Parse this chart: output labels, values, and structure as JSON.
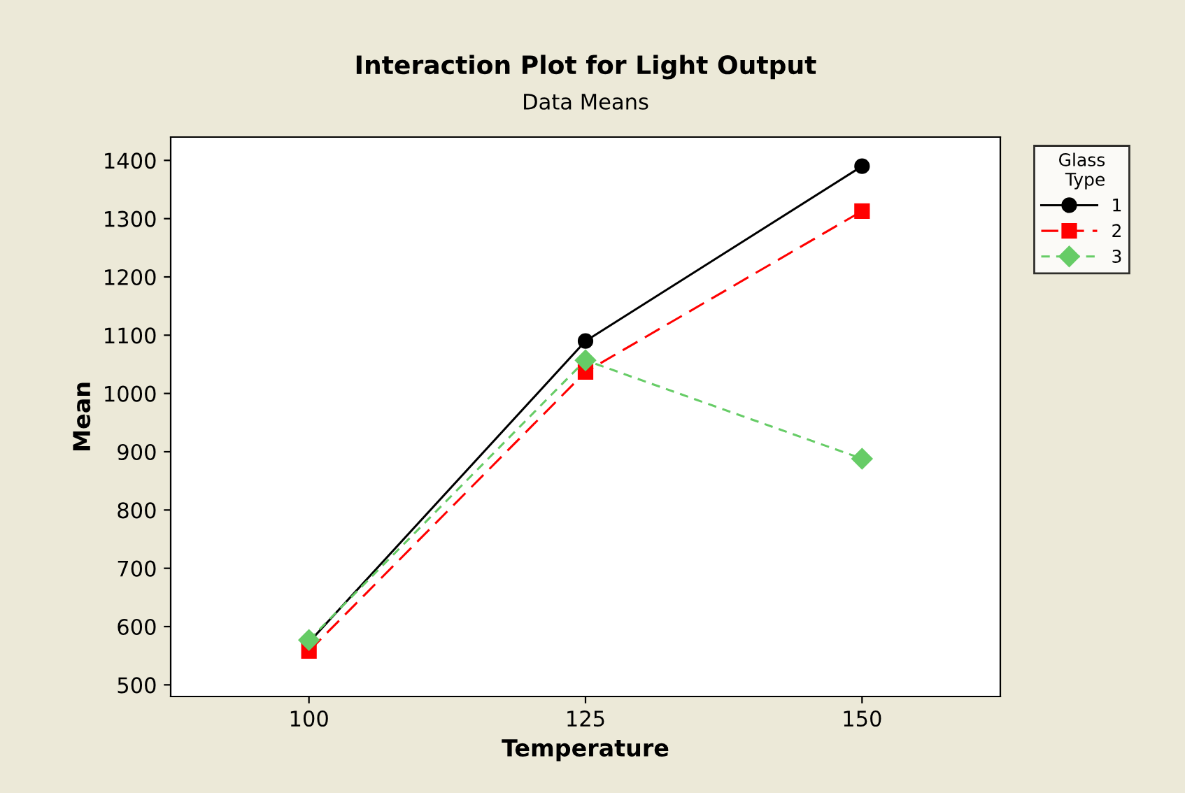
{
  "chart_data": {
    "type": "line",
    "title": "Interaction Plot for Light Output",
    "subtitle": "Data Means",
    "xlabel": "Temperature",
    "ylabel": "Mean",
    "legend_title": "Glass\nType",
    "legend": "right",
    "x": [
      100,
      125,
      150
    ],
    "xlim": [
      87.5,
      162.5
    ],
    "xticks": [
      100,
      125,
      150
    ],
    "ylim": [
      480,
      1440
    ],
    "yticks": [
      500,
      600,
      700,
      800,
      900,
      1000,
      1100,
      1200,
      1300,
      1400
    ],
    "grid": false,
    "series": [
      {
        "name": "1",
        "color": "#000000",
        "marker": "circle",
        "line_style": "solid",
        "values": [
          573,
          1090,
          1390
        ]
      },
      {
        "name": "2",
        "color": "#ff0000",
        "marker": "square",
        "line_style": "dashed",
        "values": [
          558,
          1037,
          1313
        ]
      },
      {
        "name": "3",
        "color": "#66cc66",
        "marker": "diamond",
        "line_style": "dotted",
        "values": [
          577,
          1057,
          888
        ]
      }
    ]
  }
}
